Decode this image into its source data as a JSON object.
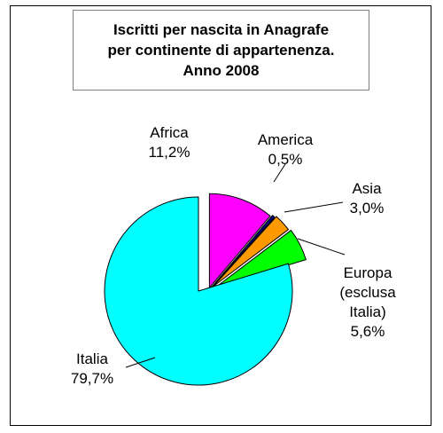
{
  "chart_data": {
    "type": "pie",
    "title_lines": [
      "Iscritti per nascita in Anagrafe",
      "per continente di appartenenza.",
      "Anno 2008"
    ],
    "slices": [
      {
        "name": "Africa",
        "value": 11.2,
        "label_lines": [
          "Africa",
          "11,2%"
        ],
        "color": "#ff00ff"
      },
      {
        "name": "America",
        "value": 0.5,
        "label_lines": [
          "America",
          "0,5%"
        ],
        "color": "#000080"
      },
      {
        "name": "Asia",
        "value": 3.0,
        "label_lines": [
          "Asia",
          "3,0%"
        ],
        "color": "#ff9900"
      },
      {
        "name": "Europa (esclusa Italia)",
        "value": 5.6,
        "label_lines": [
          "Europa",
          "(esclusa",
          "Italia)",
          "5,6%"
        ],
        "color": "#00ff00"
      },
      {
        "name": "Italia",
        "value": 79.7,
        "label_lines": [
          "Italia",
          "79,7%"
        ],
        "color": "#00ffff"
      }
    ],
    "exploded": true,
    "legend": "none"
  }
}
